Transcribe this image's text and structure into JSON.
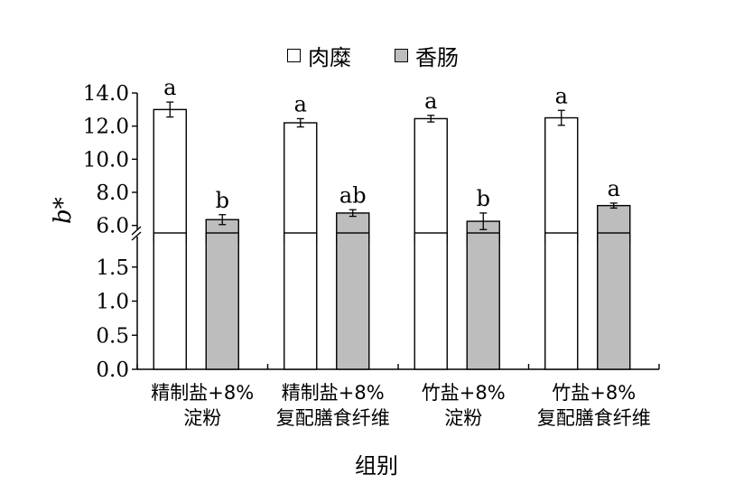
{
  "chart_data": {
    "type": "bar",
    "xlabel": "组别",
    "ylabel": "b*",
    "categories": [
      [
        "精制盐+8%",
        "淀粉"
      ],
      [
        "精制盐+8%",
        "复配膳食纤维"
      ],
      [
        "竹盐+8%",
        "淀粉"
      ],
      [
        "竹盐+8%",
        "复配膳食纤维"
      ]
    ],
    "series": [
      {
        "name": "肉糜",
        "color": "#ffffff",
        "values": [
          13.0,
          12.2,
          12.45,
          12.5
        ],
        "errors": [
          0.45,
          0.25,
          0.2,
          0.45
        ],
        "letters": [
          "a",
          "a",
          "a",
          "a"
        ]
      },
      {
        "name": "香肠",
        "color": "#bdbdbd",
        "values": [
          6.35,
          6.75,
          6.25,
          7.2
        ],
        "errors": [
          0.3,
          0.2,
          0.5,
          0.15
        ],
        "letters": [
          "b",
          "ab",
          "b",
          "a"
        ]
      }
    ],
    "axis_break": {
      "lower": [
        0.0,
        2.0
      ],
      "upper": [
        5.0,
        14.0
      ]
    },
    "lower_ticks": [
      "0.0",
      "0.5",
      "1.0",
      "1.5"
    ],
    "upper_ticks": [
      "6.0",
      "8.0",
      "10.0",
      "12.0",
      "14.0"
    ],
    "legend_position": "top-center",
    "grid": false
  }
}
